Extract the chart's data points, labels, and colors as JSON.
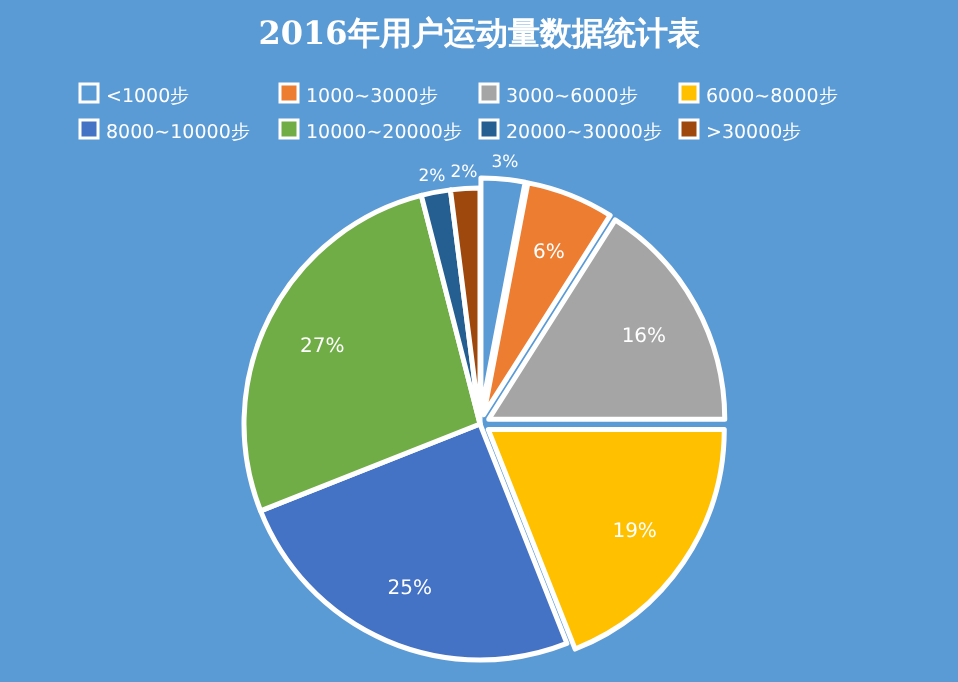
{
  "chart_data": {
    "type": "pie",
    "title": "2016年用户运动量数据统计表",
    "categories": [
      "<1000步",
      "1000~3000步",
      "3000~6000步",
      "6000~8000步",
      "8000~10000步",
      "10000~20000步",
      "20000~30000步",
      ">30000步"
    ],
    "values": [
      3,
      6,
      16,
      19,
      25,
      27,
      2,
      2
    ],
    "colors": [
      "#5b9bd5",
      "#ed7d31",
      "#a5a5a5",
      "#ffc000",
      "#4472c4",
      "#70ad47",
      "#255e91",
      "#9e480e"
    ],
    "value_labels": [
      "3%",
      "6%",
      "16%",
      "19%",
      "25%",
      "27%",
      "2%",
      "2%"
    ],
    "legend": "top"
  }
}
